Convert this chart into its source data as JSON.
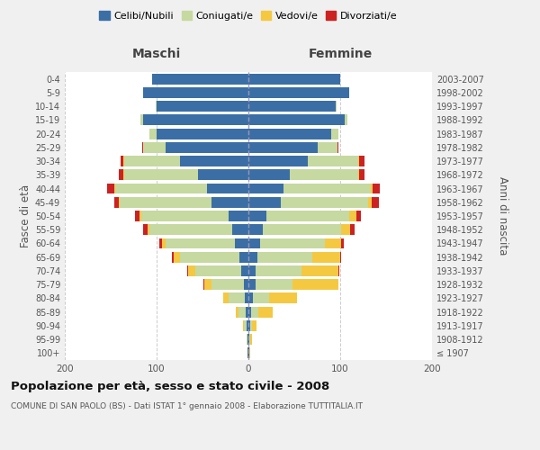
{
  "age_groups": [
    "100+",
    "95-99",
    "90-94",
    "85-89",
    "80-84",
    "75-79",
    "70-74",
    "65-69",
    "60-64",
    "55-59",
    "50-54",
    "45-49",
    "40-44",
    "35-39",
    "30-34",
    "25-29",
    "20-24",
    "15-19",
    "10-14",
    "5-9",
    "0-4"
  ],
  "birth_years": [
    "≤ 1907",
    "1908-1912",
    "1913-1917",
    "1918-1922",
    "1923-1927",
    "1928-1932",
    "1933-1937",
    "1938-1942",
    "1943-1947",
    "1948-1952",
    "1953-1957",
    "1958-1962",
    "1963-1967",
    "1968-1972",
    "1973-1977",
    "1978-1982",
    "1983-1987",
    "1988-1992",
    "1993-1997",
    "1998-2002",
    "2003-2007"
  ],
  "male_celibi": [
    1,
    1,
    2,
    3,
    4,
    5,
    8,
    10,
    15,
    18,
    22,
    40,
    45,
    55,
    75,
    90,
    100,
    115,
    100,
    115,
    105
  ],
  "male_coniugati": [
    0,
    1,
    3,
    8,
    18,
    35,
    50,
    65,
    75,
    90,
    95,
    100,
    100,
    80,
    60,
    25,
    8,
    3,
    1,
    0,
    0
  ],
  "male_vedovi": [
    0,
    0,
    1,
    3,
    5,
    8,
    8,
    6,
    4,
    2,
    2,
    1,
    1,
    1,
    1,
    0,
    0,
    0,
    0,
    0,
    0
  ],
  "male_divorziati": [
    0,
    0,
    0,
    0,
    0,
    1,
    1,
    2,
    3,
    5,
    5,
    5,
    8,
    5,
    3,
    1,
    0,
    0,
    0,
    0,
    0
  ],
  "female_celibi": [
    1,
    1,
    2,
    3,
    5,
    8,
    8,
    10,
    13,
    16,
    20,
    35,
    38,
    45,
    65,
    75,
    90,
    105,
    95,
    110,
    100
  ],
  "female_coniugati": [
    0,
    1,
    2,
    8,
    18,
    40,
    50,
    60,
    70,
    85,
    90,
    95,
    95,
    75,
    55,
    22,
    8,
    3,
    1,
    0,
    0
  ],
  "female_vedovi": [
    1,
    2,
    5,
    15,
    30,
    50,
    40,
    30,
    18,
    10,
    8,
    4,
    2,
    1,
    1,
    0,
    0,
    0,
    0,
    0,
    0
  ],
  "female_divorziati": [
    0,
    0,
    0,
    0,
    0,
    0,
    1,
    1,
    3,
    5,
    5,
    8,
    8,
    5,
    5,
    1,
    0,
    0,
    0,
    0,
    0
  ],
  "colors": {
    "celibi": "#3B6EA5",
    "coniugati": "#C5D9A0",
    "vedovi": "#F5C842",
    "divorziati": "#CC2222"
  },
  "xlim": 200,
  "title": "Popolazione per età, sesso e stato civile - 2008",
  "subtitle": "COMUNE DI SAN PAOLO (BS) - Dati ISTAT 1° gennaio 2008 - Elaborazione TUTTITALIA.IT",
  "ylabel_left": "Fasce di età",
  "ylabel_right": "Anni di nascita",
  "xlabel_left": "Maschi",
  "xlabel_right": "Femmine",
  "legend_labels": [
    "Celibi/Nubili",
    "Coniugati/e",
    "Vedovi/e",
    "Divorziati/e"
  ],
  "bg_color": "#f0f0f0",
  "plot_bg": "#ffffff"
}
